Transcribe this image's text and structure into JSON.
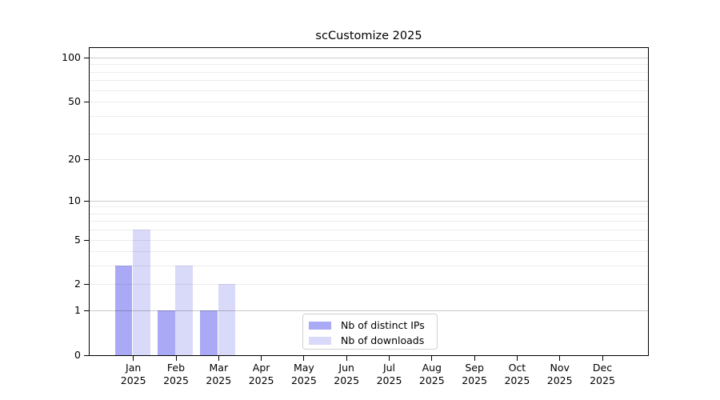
{
  "chart_data": {
    "type": "bar",
    "title": "scCustomize 2025",
    "categories": [
      "Jan",
      "Feb",
      "Mar",
      "Apr",
      "May",
      "Jun",
      "Jul",
      "Aug",
      "Sep",
      "Oct",
      "Nov",
      "Dec"
    ],
    "x_year_label": "2025",
    "series": [
      {
        "name": "Nb of distinct IPs",
        "color": "#a9a9f6",
        "values": [
          3,
          1,
          1,
          0,
          0,
          0,
          0,
          0,
          0,
          0,
          0,
          0
        ]
      },
      {
        "name": "Nb of downloads",
        "color": "#d9d9f9",
        "values": [
          6,
          3,
          2,
          0,
          0,
          0,
          0,
          0,
          0,
          0,
          0,
          0
        ]
      }
    ],
    "y_axis": {
      "scale": "log10(1+x)",
      "tick_values": [
        0,
        1,
        2,
        5,
        10,
        20,
        50,
        100
      ],
      "tick_labels": [
        "0",
        "1",
        "2",
        "5",
        "10",
        "20",
        "50",
        "100"
      ],
      "major_grid_values": [
        1,
        10,
        100
      ],
      "minor_grid_values": [
        2,
        3,
        4,
        5,
        6,
        7,
        8,
        9,
        20,
        30,
        40,
        50,
        60,
        70,
        80,
        90
      ],
      "range_max": 100
    },
    "legend": {
      "position": "lower center",
      "entries": [
        "Nb of distinct IPs",
        "Nb of downloads"
      ]
    },
    "grid": true
  }
}
